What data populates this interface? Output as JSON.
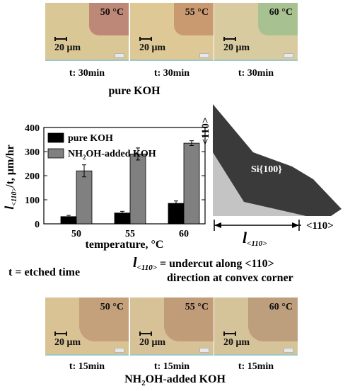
{
  "top_row": {
    "panels": [
      {
        "temp": "50 °C",
        "time": "t: 30min",
        "scale": "20 μm",
        "bg": "#d9c796",
        "chip": "#bd8877"
      },
      {
        "temp": "55 °C",
        "time": "t: 30min",
        "scale": "20 μm",
        "bg": "#ddc896",
        "chip": "#c99a6f"
      },
      {
        "temp": "60 °C",
        "time": "t: 30min",
        "scale": "20 μm",
        "bg": "#d9cba0",
        "chip": "#a7c190"
      }
    ],
    "label": "pure KOH"
  },
  "bottom_row": {
    "panels": [
      {
        "temp": "50 °C",
        "time": "t: 15min",
        "scale": "20 μm",
        "bg": "#d9c394",
        "chip": "#c4a17a"
      },
      {
        "temp": "55 °C",
        "time": "t: 15min",
        "scale": "20 μm",
        "bg": "#d6c296",
        "chip": "#c09c78"
      },
      {
        "temp": "60 °C",
        "time": "t: 15min",
        "scale": "20 μm",
        "bg": "#d5c39a",
        "chip": "#bd9e7d"
      }
    ],
    "label_prefix": "NH",
    "label_sub": "2",
    "label_suffix": "OH-added KOH"
  },
  "chart_data": {
    "type": "bar",
    "categories": [
      "50",
      "55",
      "60"
    ],
    "series": [
      {
        "name": "pure KOH",
        "color": "#000000",
        "values": [
          30,
          45,
          85
        ],
        "errors": [
          5,
          7,
          10
        ]
      },
      {
        "name": "NH2OH-added KOH",
        "color": "#808080",
        "values": [
          220,
          290,
          335
        ],
        "errors": [
          25,
          25,
          10
        ]
      }
    ],
    "legend": [
      {
        "main": "pure KOH",
        "sub": "",
        "rest": ""
      },
      {
        "main": "NH",
        "sub": "2",
        "rest": "OH-added KOH"
      }
    ],
    "ylim": [
      0,
      400
    ],
    "yticks": [
      "0",
      "100",
      "200",
      "300",
      "400"
    ],
    "xlabel": "temperature, °C",
    "ylabel_main": "l",
    "ylabel_sub": "<110>",
    "ylabel_rest": "/t, μm/hr",
    "legend_position": "top-left"
  },
  "diagram": {
    "region_label": "Si{100}",
    "left_label": "<110>",
    "right_label": "<110>",
    "dim_label_main": "l",
    "dim_label_sub": "<110>",
    "colors": {
      "dark": "#3a3a3a",
      "light": "#c4c4c4"
    }
  },
  "notes": {
    "t_def": "t = etched time",
    "l_main": "l",
    "l_sub": "<110>",
    "l_def_line1": "= undercut along <110>",
    "l_def_line2": "direction at convex corner"
  }
}
